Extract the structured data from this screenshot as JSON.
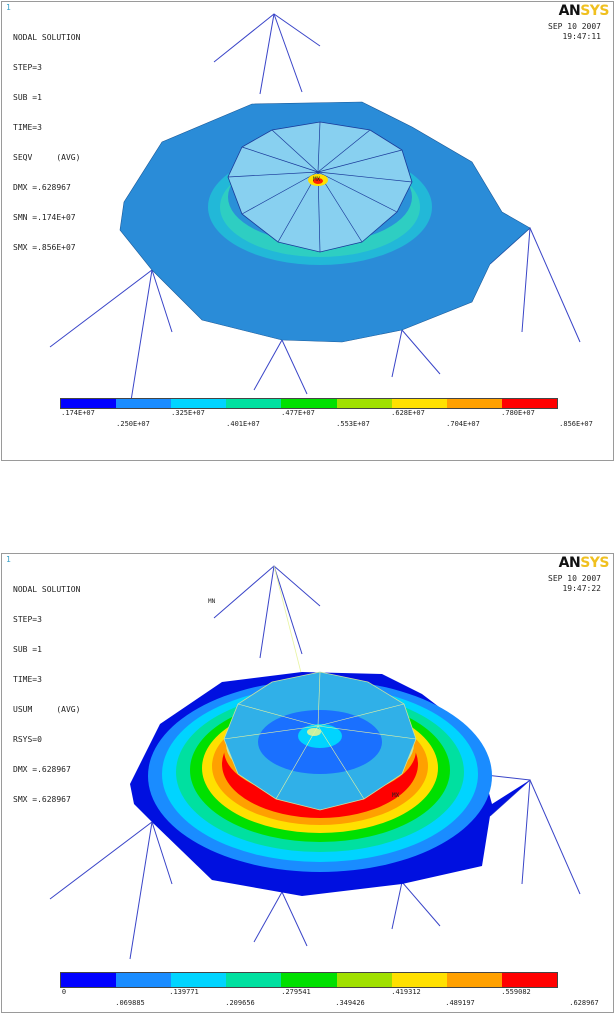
{
  "plots": [
    {
      "corner_number": "1",
      "info": [
        "NODAL SOLUTION",
        "STEP=3",
        "SUB =1",
        "TIME=3",
        "SEQV     (AVG)",
        "DMX =.628967",
        "SMN =.174E+07",
        "SMX =.856E+07"
      ],
      "logo": {
        "an": "AN",
        "sys": "SYS"
      },
      "date": "SEP 10 2007",
      "time": "19:47:11",
      "markers": [
        "MX"
      ],
      "legend": {
        "colors": [
          "#0000ff",
          "#1a8cff",
          "#00d4ff",
          "#00e0a0",
          "#00e000",
          "#a0e000",
          "#ffe000",
          "#ffa000",
          "#ff0000"
        ],
        "upper_labels": [
          ".174E+07",
          ".325E+07",
          ".477E+07",
          ".628E+07",
          ".780E+07"
        ],
        "lower_labels": [
          ".250E+07",
          ".401E+07",
          ".553E+07",
          ".704E+07",
          ".856E+07"
        ]
      }
    },
    {
      "corner_number": "1",
      "info": [
        "NODAL SOLUTION",
        "STEP=3",
        "SUB =1",
        "TIME=3",
        "USUM     (AVG)",
        "RSYS=0",
        "DMX =.628967",
        "SMX =.628967"
      ],
      "logo": {
        "an": "AN",
        "sys": "SYS"
      },
      "date": "SEP 10 2007",
      "time": "19:47:22",
      "markers": [
        "MN",
        "MX"
      ],
      "legend": {
        "colors": [
          "#0000ff",
          "#1a8cff",
          "#00d4ff",
          "#00e0a0",
          "#00e000",
          "#a0e000",
          "#ffe000",
          "#ffa000",
          "#ff0000"
        ],
        "upper_labels": [
          "0",
          ".139771",
          ".279541",
          ".419312",
          ".559082"
        ],
        "lower_labels": [
          ".069885",
          ".209656",
          ".349426",
          ".489197",
          ".628967"
        ]
      }
    }
  ]
}
